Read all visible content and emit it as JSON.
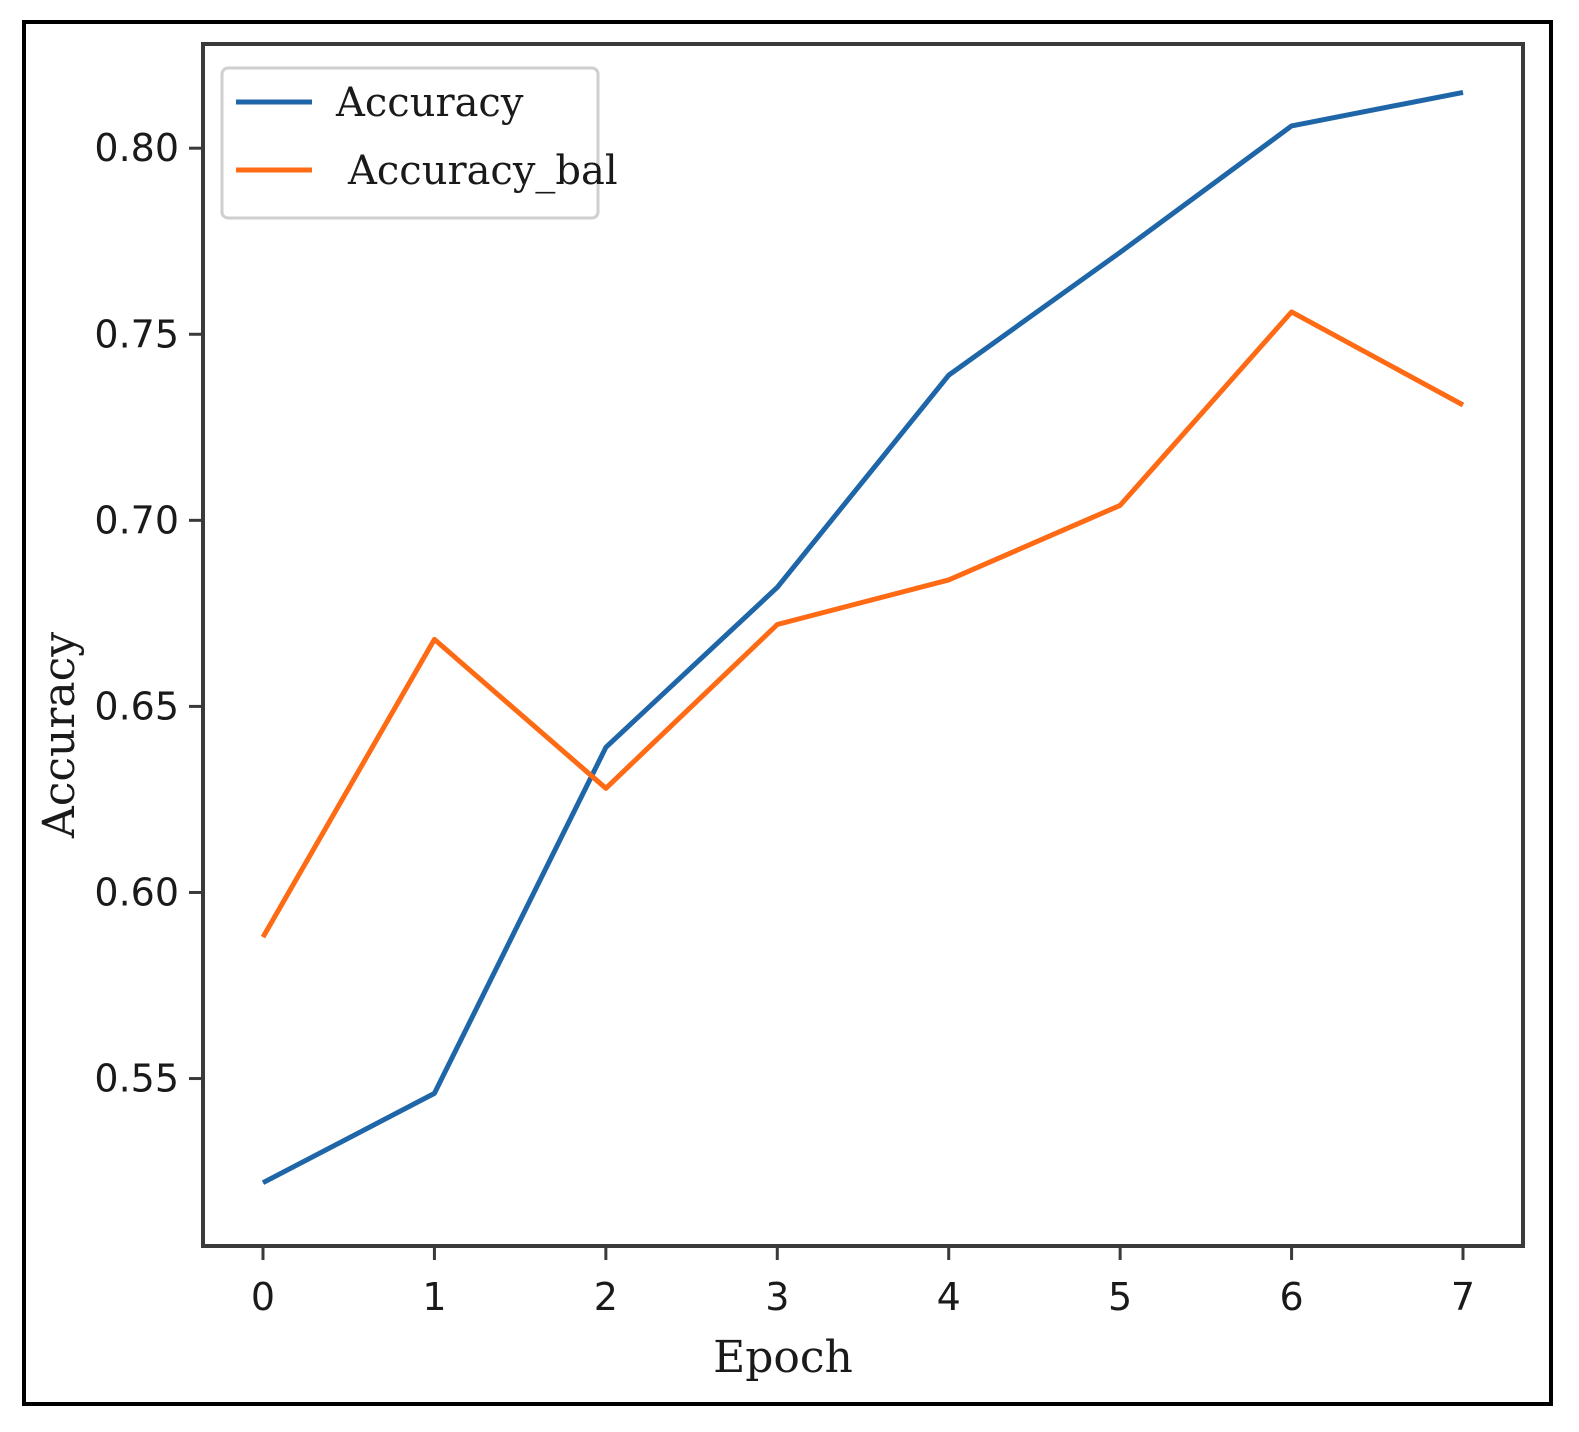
{
  "chart_data": {
    "type": "line",
    "xlabel": "Epoch",
    "ylabel": "Accuracy",
    "x": [
      0,
      1,
      2,
      3,
      4,
      5,
      6,
      7
    ],
    "xlim": [
      -0.35,
      7.35
    ],
    "ylim": [
      0.505,
      0.828
    ],
    "xticks": [
      "0",
      "1",
      "2",
      "3",
      "4",
      "5",
      "6",
      "7"
    ],
    "yticks": [
      "0.55",
      "0.60",
      "0.65",
      "0.70",
      "0.75",
      "0.80"
    ],
    "ytick_values": [
      0.55,
      0.6,
      0.65,
      0.7,
      0.75,
      0.8
    ],
    "legend_position": "top-left",
    "grid": false,
    "series": [
      {
        "name": "Accuracy",
        "color": "#1f66a8",
        "values": [
          0.522,
          0.546,
          0.639,
          0.682,
          0.739,
          0.772,
          0.806,
          0.815
        ]
      },
      {
        "name": "Accuracy_bal",
        "color": "#ff6a14",
        "values": [
          0.588,
          0.668,
          0.628,
          0.672,
          0.684,
          0.704,
          0.756,
          0.731
        ]
      }
    ]
  }
}
